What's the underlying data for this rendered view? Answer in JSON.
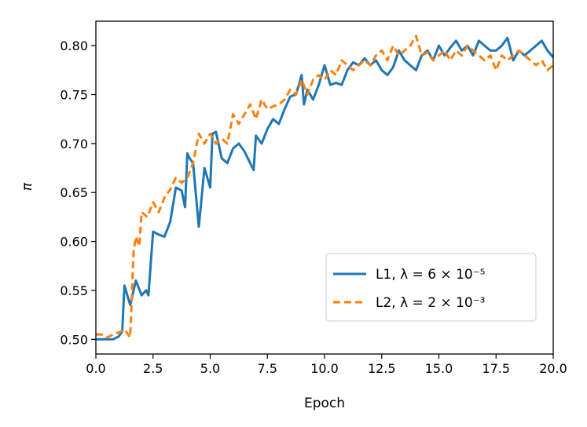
{
  "chart_data": {
    "type": "line",
    "xlabel": "Epoch",
    "ylabel": "π",
    "xlim": [
      0,
      20
    ],
    "ylim": [
      0.485,
      0.825
    ],
    "xticks": [
      "0.0",
      "2.5",
      "5.0",
      "7.5",
      "10.0",
      "12.5",
      "15.0",
      "17.5",
      "20.0"
    ],
    "yticks": [
      "0.50",
      "0.55",
      "0.60",
      "0.65",
      "0.70",
      "0.75",
      "0.80"
    ],
    "legend_position": "lower-right",
    "series": [
      {
        "name": "L1, λ = 6 × 10⁻⁵",
        "color": "#1f77b4",
        "style": "solid",
        "x": [
          0.0,
          0.25,
          0.5,
          0.75,
          1.0,
          1.15,
          1.25,
          1.5,
          1.75,
          2.0,
          2.2,
          2.3,
          2.5,
          2.75,
          3.0,
          3.25,
          3.5,
          3.75,
          3.9,
          4.0,
          4.1,
          4.25,
          4.5,
          4.75,
          5.0,
          5.1,
          5.25,
          5.5,
          5.75,
          6.0,
          6.25,
          6.5,
          6.75,
          6.9,
          7.0,
          7.25,
          7.5,
          7.75,
          8.0,
          8.25,
          8.5,
          8.75,
          9.0,
          9.1,
          9.25,
          9.5,
          9.75,
          10.0,
          10.25,
          10.5,
          10.75,
          11.0,
          11.25,
          11.5,
          11.75,
          12.0,
          12.25,
          12.5,
          12.75,
          13.0,
          13.25,
          13.5,
          13.75,
          14.0,
          14.25,
          14.5,
          14.75,
          15.0,
          15.25,
          15.5,
          15.75,
          16.0,
          16.25,
          16.5,
          16.75,
          17.0,
          17.25,
          17.5,
          17.75,
          18.0,
          18.25,
          18.5,
          18.75,
          19.0,
          19.25,
          19.5,
          19.75,
          20.0
        ],
        "y": [
          0.5,
          0.5,
          0.5,
          0.5,
          0.503,
          0.508,
          0.555,
          0.535,
          0.56,
          0.545,
          0.55,
          0.545,
          0.61,
          0.607,
          0.605,
          0.62,
          0.655,
          0.652,
          0.635,
          0.69,
          0.685,
          0.68,
          0.615,
          0.675,
          0.655,
          0.71,
          0.712,
          0.685,
          0.68,
          0.695,
          0.7,
          0.692,
          0.68,
          0.673,
          0.708,
          0.7,
          0.715,
          0.725,
          0.72,
          0.735,
          0.748,
          0.75,
          0.77,
          0.74,
          0.755,
          0.745,
          0.76,
          0.78,
          0.76,
          0.762,
          0.76,
          0.775,
          0.783,
          0.78,
          0.787,
          0.78,
          0.785,
          0.775,
          0.77,
          0.778,
          0.795,
          0.785,
          0.78,
          0.775,
          0.79,
          0.795,
          0.785,
          0.8,
          0.79,
          0.798,
          0.805,
          0.795,
          0.8,
          0.79,
          0.805,
          0.8,
          0.795,
          0.795,
          0.8,
          0.808,
          0.785,
          0.795,
          0.79,
          0.795,
          0.8,
          0.805,
          0.795,
          0.788
        ]
      },
      {
        "name": "L2, λ = 2 × 10⁻³",
        "color": "#ff7f0e",
        "style": "dashed",
        "x": [
          0.0,
          0.25,
          0.5,
          0.75,
          1.0,
          1.25,
          1.5,
          1.65,
          1.75,
          1.9,
          2.0,
          2.25,
          2.5,
          2.75,
          3.0,
          3.25,
          3.5,
          3.75,
          4.0,
          4.25,
          4.5,
          4.75,
          5.0,
          5.25,
          5.5,
          5.75,
          6.0,
          6.25,
          6.5,
          6.75,
          7.0,
          7.25,
          7.5,
          7.75,
          8.0,
          8.25,
          8.5,
          8.75,
          9.0,
          9.25,
          9.5,
          9.75,
          10.0,
          10.25,
          10.5,
          10.75,
          11.0,
          11.25,
          11.5,
          11.75,
          12.0,
          12.25,
          12.5,
          12.75,
          13.0,
          13.25,
          13.5,
          13.75,
          14.0,
          14.25,
          14.5,
          14.75,
          15.0,
          15.25,
          15.5,
          15.75,
          16.0,
          16.25,
          16.5,
          16.75,
          17.0,
          17.25,
          17.5,
          17.75,
          18.0,
          18.25,
          18.5,
          18.75,
          19.0,
          19.25,
          19.5,
          19.75,
          20.0
        ],
        "y": [
          0.505,
          0.505,
          0.502,
          0.505,
          0.507,
          0.51,
          0.502,
          0.59,
          0.605,
          0.595,
          0.63,
          0.625,
          0.64,
          0.63,
          0.645,
          0.653,
          0.665,
          0.66,
          0.665,
          0.68,
          0.71,
          0.7,
          0.71,
          0.7,
          0.705,
          0.7,
          0.73,
          0.72,
          0.73,
          0.74,
          0.725,
          0.745,
          0.735,
          0.738,
          0.74,
          0.745,
          0.755,
          0.75,
          0.765,
          0.75,
          0.765,
          0.77,
          0.765,
          0.775,
          0.77,
          0.785,
          0.78,
          0.775,
          0.78,
          0.785,
          0.78,
          0.79,
          0.795,
          0.785,
          0.8,
          0.79,
          0.795,
          0.8,
          0.81,
          0.79,
          0.793,
          0.785,
          0.79,
          0.795,
          0.785,
          0.795,
          0.79,
          0.8,
          0.795,
          0.79,
          0.785,
          0.79,
          0.775,
          0.79,
          0.785,
          0.79,
          0.795,
          0.79,
          0.785,
          0.78,
          0.785,
          0.775,
          0.78
        ]
      }
    ]
  }
}
